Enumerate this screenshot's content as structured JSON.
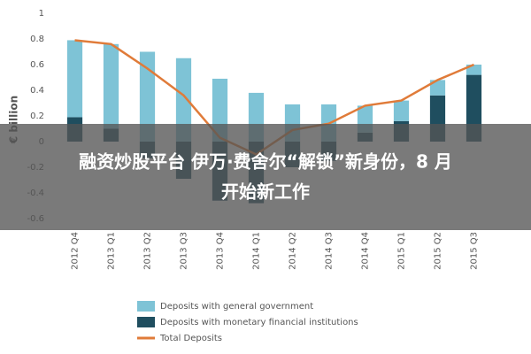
{
  "chart_data": {
    "type": "stacked-bar-line",
    "y_label": "€ billion",
    "categories": [
      "2012 Q4",
      "2013 Q1",
      "2013 Q2",
      "2013 Q3",
      "2013 Q4",
      "2014 Q1",
      "2014 Q2",
      "2014 Q3",
      "2014 Q4",
      "2015 Q1",
      "2015 Q2",
      "2015 Q3"
    ],
    "series": [
      {
        "name": "Deposits with general government",
        "color": "#7ec3d6",
        "kind": "bar",
        "values": [
          0.6,
          0.66,
          0.7,
          0.65,
          0.49,
          0.38,
          0.29,
          0.29,
          0.21,
          0.16,
          0.12,
          0.08
        ]
      },
      {
        "name": "Deposits with monetary financial institutions",
        "color": "#1f4e5f",
        "kind": "bar",
        "values": [
          0.19,
          0.1,
          -0.13,
          -0.29,
          -0.46,
          -0.48,
          -0.2,
          -0.15,
          0.07,
          0.16,
          0.36,
          0.52
        ]
      },
      {
        "name": "Total Deposits",
        "color": "#e07b39",
        "kind": "line",
        "values": [
          0.79,
          0.76,
          0.57,
          0.36,
          0.03,
          -0.1,
          0.09,
          0.14,
          0.28,
          0.32,
          0.48,
          0.6
        ]
      }
    ],
    "ylim": [
      -0.6,
      1
    ],
    "yticks": [
      -0.6,
      -0.4,
      -0.2,
      0,
      0.2,
      0.4,
      0.6,
      0.8,
      1
    ],
    "grid": false,
    "legend": "bottom"
  },
  "banner": {
    "lines": [
      "融资炒股平台 伊万·费舍尔“解锁”新身份，8 月",
      "开始新工作"
    ]
  }
}
